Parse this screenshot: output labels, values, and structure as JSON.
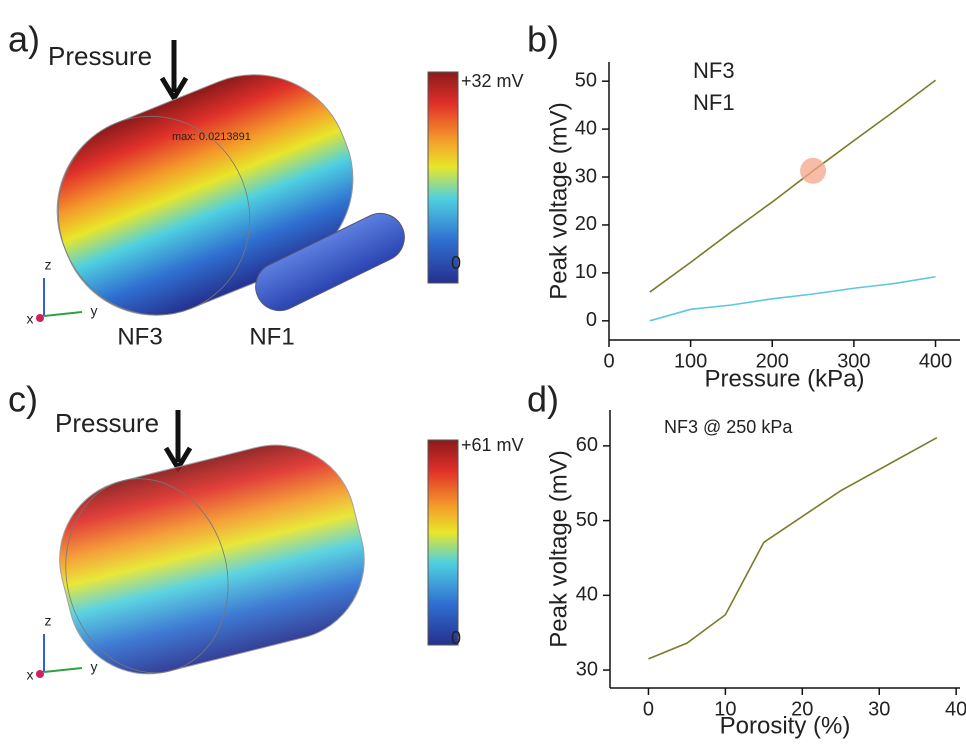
{
  "panels": {
    "a": {
      "label": "a)",
      "arrow_label": "Pressure",
      "colorbar_max": "+32 mV",
      "colorbar_min": "0",
      "annotation": "max: 0.0213891",
      "axes": [
        "z",
        "y",
        "x"
      ],
      "objects": [
        "NF3",
        "NF1"
      ]
    },
    "c": {
      "label": "c)",
      "arrow_label": "Pressure",
      "colorbar_max": "+61 mV",
      "colorbar_min": "0",
      "axes": [
        "z",
        "y",
        "x"
      ]
    }
  },
  "chart_data": [
    {
      "type": "line",
      "panel_label": "b)",
      "xlabel": "Pressure (kPa)",
      "ylabel": "Peak voltage (mV)",
      "x": [
        50,
        100,
        150,
        200,
        250,
        300,
        350,
        400
      ],
      "series": [
        {
          "name": "NF3",
          "color": "#7b7b2a",
          "marker": "square",
          "values": [
            6,
            12.2,
            18.6,
            24.8,
            31.3,
            37.6,
            43.8,
            50.2
          ]
        },
        {
          "name": "NF1",
          "color": "#5bc8dc",
          "marker": "circle",
          "values": [
            0,
            2.4,
            3.3,
            4.6,
            5.6,
            6.8,
            7.8,
            9.2
          ]
        }
      ],
      "highlight_index": 4,
      "highlight_color": "#f4a58a",
      "xlim": [
        0,
        430
      ],
      "ylim": [
        -4,
        54
      ],
      "xticks": [
        0,
        100,
        200,
        300,
        400
      ],
      "yticks": [
        0,
        10,
        20,
        30,
        40,
        50
      ],
      "legend": "top-left"
    },
    {
      "type": "line",
      "panel_label": "d)",
      "xlabel": "Porosity (%)",
      "ylabel": "Peak voltage (mV)",
      "x": [
        0,
        5,
        10,
        15,
        25,
        37.5
      ],
      "series": [
        {
          "name": "NF3 @ 250 kPa",
          "color": "#7b7b2a",
          "marker": "square",
          "values": [
            31.5,
            33.6,
            37.4,
            47.1,
            54,
            61.1
          ]
        }
      ],
      "xlim": [
        -5,
        40.5
      ],
      "ylim": [
        27.6,
        64.8
      ],
      "xticks": [
        0,
        10,
        20,
        30,
        40
      ],
      "yticks": [
        30,
        40,
        50,
        60
      ],
      "legend": "top-left"
    }
  ]
}
